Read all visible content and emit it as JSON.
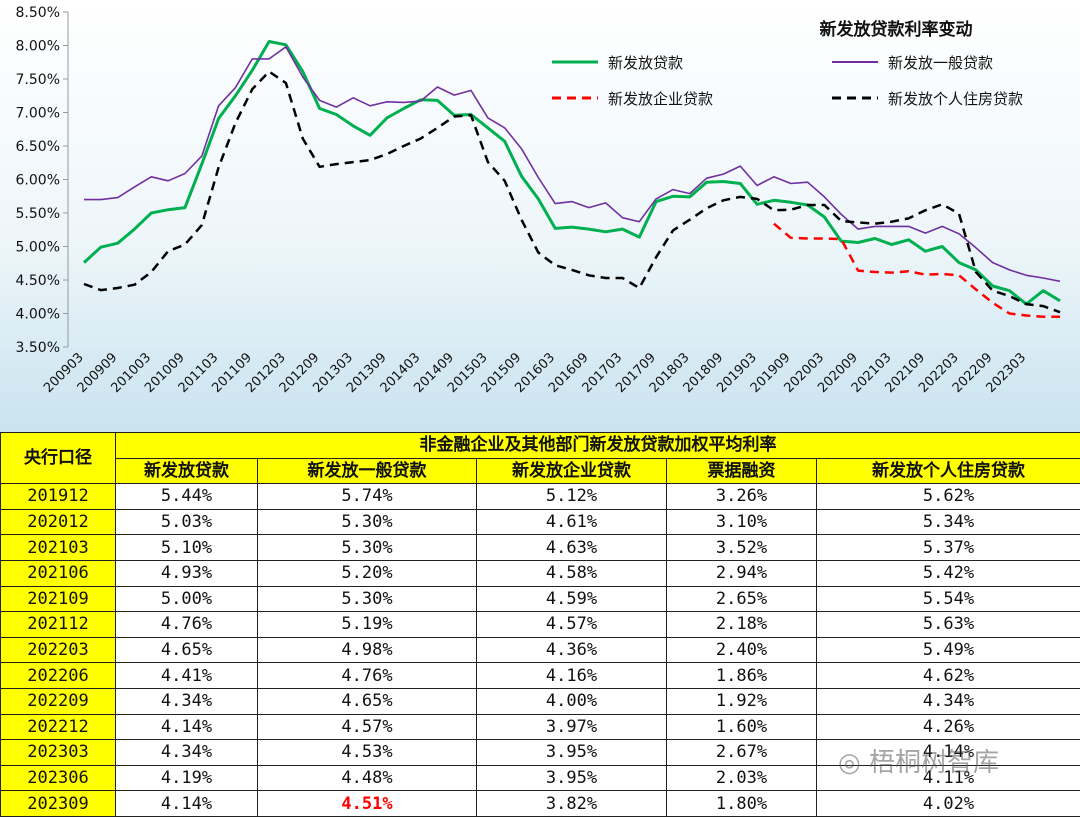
{
  "chart_data": {
    "type": "line",
    "title": "新发放贷款利率变动",
    "x_tick_labels": [
      "200903",
      "200909",
      "201003",
      "201009",
      "201103",
      "201109",
      "201203",
      "201209",
      "201303",
      "201309",
      "201403",
      "201409",
      "201503",
      "201509",
      "201603",
      "201609",
      "201703",
      "201709",
      "201803",
      "201809",
      "201903",
      "201909",
      "202003",
      "202009",
      "202103",
      "202109",
      "202203",
      "202209",
      "202303"
    ],
    "y_tick_labels": [
      "3.50%",
      "4.00%",
      "4.50%",
      "5.00%",
      "5.50%",
      "6.00%",
      "6.50%",
      "7.00%",
      "7.50%",
      "8.00%",
      "8.50%"
    ],
    "ylim": [
      3.5,
      8.5
    ],
    "legend_position": "top-right",
    "series": [
      {
        "name": "新发放贷款",
        "color": "#00b050",
        "style": "solid",
        "points": [
          [
            0,
            4.76
          ],
          [
            1,
            4.99
          ],
          [
            2,
            5.05
          ],
          [
            3,
            5.26
          ],
          [
            4,
            5.5
          ],
          [
            5,
            5.55
          ],
          [
            6,
            5.58
          ],
          [
            7,
            6.23
          ],
          [
            8,
            6.91
          ],
          [
            9,
            7.25
          ],
          [
            10,
            7.63
          ],
          [
            11,
            8.06
          ],
          [
            12,
            8.01
          ],
          [
            13,
            7.61
          ],
          [
            14,
            7.06
          ],
          [
            15,
            6.97
          ],
          [
            16,
            6.8
          ],
          [
            17,
            6.66
          ],
          [
            18,
            6.92
          ],
          [
            19,
            7.06
          ],
          [
            20,
            7.19
          ],
          [
            21,
            7.18
          ],
          [
            22,
            6.96
          ],
          [
            23,
            6.97
          ],
          [
            24,
            6.77
          ],
          [
            25,
            6.57
          ],
          [
            26,
            6.05
          ],
          [
            27,
            5.71
          ],
          [
            28,
            5.27
          ],
          [
            29,
            5.29
          ],
          [
            30,
            5.26
          ],
          [
            31,
            5.22
          ],
          [
            32,
            5.26
          ],
          [
            33,
            5.14
          ],
          [
            34,
            5.67
          ],
          [
            35,
            5.75
          ],
          [
            36,
            5.74
          ],
          [
            37,
            5.96
          ],
          [
            38,
            5.97
          ],
          [
            39,
            5.94
          ],
          [
            40,
            5.63
          ],
          [
            41,
            5.69
          ],
          [
            42,
            5.66
          ],
          [
            43,
            5.62
          ],
          [
            44,
            5.44
          ],
          [
            45,
            5.08
          ],
          [
            46,
            5.06
          ],
          [
            47,
            5.12
          ],
          [
            48,
            5.03
          ],
          [
            49,
            5.1
          ],
          [
            50,
            4.93
          ],
          [
            51,
            5.0
          ],
          [
            52,
            4.76
          ],
          [
            53,
            4.65
          ],
          [
            54,
            4.41
          ],
          [
            55,
            4.34
          ],
          [
            56,
            4.14
          ],
          [
            57,
            4.34
          ],
          [
            58,
            4.19
          ]
        ]
      },
      {
        "name": "新发放一般贷款",
        "color": "#7030a0",
        "style": "solid",
        "points": [
          [
            0,
            5.7
          ],
          [
            1,
            5.7
          ],
          [
            2,
            5.73
          ],
          [
            3,
            5.89
          ],
          [
            4,
            6.04
          ],
          [
            5,
            5.98
          ],
          [
            6,
            6.09
          ],
          [
            7,
            6.35
          ],
          [
            8,
            7.1
          ],
          [
            9,
            7.37
          ],
          [
            10,
            7.8
          ],
          [
            11,
            7.8
          ],
          [
            12,
            7.98
          ],
          [
            13,
            7.53
          ],
          [
            14,
            7.18
          ],
          [
            15,
            7.08
          ],
          [
            16,
            7.22
          ],
          [
            17,
            7.1
          ],
          [
            18,
            7.16
          ],
          [
            19,
            7.15
          ],
          [
            20,
            7.17
          ],
          [
            21,
            7.38
          ],
          [
            22,
            7.26
          ],
          [
            23,
            7.33
          ],
          [
            24,
            6.92
          ],
          [
            25,
            6.77
          ],
          [
            26,
            6.46
          ],
          [
            27,
            6.03
          ],
          [
            28,
            5.64
          ],
          [
            29,
            5.67
          ],
          [
            30,
            5.58
          ],
          [
            31,
            5.65
          ],
          [
            32,
            5.43
          ],
          [
            33,
            5.37
          ],
          [
            34,
            5.71
          ],
          [
            35,
            5.85
          ],
          [
            36,
            5.79
          ],
          [
            37,
            6.02
          ],
          [
            38,
            6.08
          ],
          [
            39,
            6.2
          ],
          [
            40,
            5.91
          ],
          [
            41,
            6.04
          ],
          [
            42,
            5.94
          ],
          [
            43,
            5.96
          ],
          [
            44,
            5.74
          ],
          [
            45,
            5.48
          ],
          [
            46,
            5.26
          ],
          [
            47,
            5.3
          ],
          [
            48,
            5.3
          ],
          [
            49,
            5.3
          ],
          [
            50,
            5.2
          ],
          [
            51,
            5.3
          ],
          [
            52,
            5.19
          ],
          [
            53,
            4.98
          ],
          [
            54,
            4.76
          ],
          [
            55,
            4.65
          ],
          [
            56,
            4.57
          ],
          [
            57,
            4.53
          ],
          [
            58,
            4.48
          ]
        ]
      },
      {
        "name": "新发放企业贷款",
        "color": "#ff0000",
        "style": "dashed",
        "points": [
          [
            41,
            5.34
          ],
          [
            42,
            5.13
          ],
          [
            43,
            5.12
          ],
          [
            44,
            5.12
          ],
          [
            45,
            5.11
          ],
          [
            46,
            4.64
          ],
          [
            47,
            4.62
          ],
          [
            48,
            4.61
          ],
          [
            49,
            4.63
          ],
          [
            50,
            4.58
          ],
          [
            51,
            4.59
          ],
          [
            52,
            4.57
          ],
          [
            53,
            4.36
          ],
          [
            54,
            4.16
          ],
          [
            55,
            4.0
          ],
          [
            56,
            3.97
          ],
          [
            57,
            3.95
          ],
          [
            58,
            3.95
          ]
        ]
      },
      {
        "name": "新发放个人住房贷款",
        "color": "#000000",
        "style": "dashed",
        "points": [
          [
            0,
            4.44
          ],
          [
            1,
            4.35
          ],
          [
            2,
            4.38
          ],
          [
            3,
            4.43
          ],
          [
            4,
            4.62
          ],
          [
            5,
            4.93
          ],
          [
            6,
            5.03
          ],
          [
            7,
            5.32
          ],
          [
            8,
            6.18
          ],
          [
            9,
            6.84
          ],
          [
            10,
            7.35
          ],
          [
            11,
            7.61
          ],
          [
            12,
            7.44
          ],
          [
            13,
            6.61
          ],
          [
            14,
            6.19
          ],
          [
            15,
            6.23
          ],
          [
            16,
            6.26
          ],
          [
            17,
            6.29
          ],
          [
            18,
            6.38
          ],
          [
            19,
            6.5
          ],
          [
            20,
            6.61
          ],
          [
            21,
            6.77
          ],
          [
            22,
            6.94
          ],
          [
            23,
            6.96
          ],
          [
            24,
            6.26
          ],
          [
            25,
            5.98
          ],
          [
            26,
            5.4
          ],
          [
            27,
            4.91
          ],
          [
            28,
            4.72
          ],
          [
            29,
            4.65
          ],
          [
            30,
            4.57
          ],
          [
            31,
            4.53
          ],
          [
            32,
            4.53
          ],
          [
            33,
            4.38
          ],
          [
            34,
            4.84
          ],
          [
            35,
            5.24
          ],
          [
            36,
            5.4
          ],
          [
            37,
            5.57
          ],
          [
            38,
            5.69
          ],
          [
            39,
            5.74
          ],
          [
            40,
            5.71
          ],
          [
            41,
            5.54
          ],
          [
            42,
            5.55
          ],
          [
            43,
            5.62
          ],
          [
            44,
            5.62
          ],
          [
            45,
            5.38
          ],
          [
            46,
            5.36
          ],
          [
            47,
            5.34
          ],
          [
            48,
            5.37
          ],
          [
            49,
            5.42
          ],
          [
            50,
            5.54
          ],
          [
            51,
            5.63
          ],
          [
            52,
            5.49
          ],
          [
            53,
            4.62
          ],
          [
            54,
            4.34
          ],
          [
            55,
            4.26
          ],
          [
            56,
            4.14
          ],
          [
            57,
            4.11
          ],
          [
            58,
            4.02
          ]
        ]
      }
    ]
  },
  "table": {
    "corner_label": "央行口径",
    "group_header": "非金融企业及其他部门新发放贷款加权平均利率",
    "columns": [
      "新发放贷款",
      "新发放一般贷款",
      "新发放企业贷款",
      "票据融资",
      "新发放个人住房贷款"
    ],
    "rows": [
      {
        "period": "201912",
        "values": [
          "5.44%",
          "5.74%",
          "5.12%",
          "3.26%",
          "5.62%"
        ]
      },
      {
        "period": "202012",
        "values": [
          "5.03%",
          "5.30%",
          "4.61%",
          "3.10%",
          "5.34%"
        ]
      },
      {
        "period": "202103",
        "values": [
          "5.10%",
          "5.30%",
          "4.63%",
          "3.52%",
          "5.37%"
        ]
      },
      {
        "period": "202106",
        "values": [
          "4.93%",
          "5.20%",
          "4.58%",
          "2.94%",
          "5.42%"
        ]
      },
      {
        "period": "202109",
        "values": [
          "5.00%",
          "5.30%",
          "4.59%",
          "2.65%",
          "5.54%"
        ]
      },
      {
        "period": "202112",
        "values": [
          "4.76%",
          "5.19%",
          "4.57%",
          "2.18%",
          "5.63%"
        ]
      },
      {
        "period": "202203",
        "values": [
          "4.65%",
          "4.98%",
          "4.36%",
          "2.40%",
          "5.49%"
        ]
      },
      {
        "period": "202206",
        "values": [
          "4.41%",
          "4.76%",
          "4.16%",
          "1.86%",
          "4.62%"
        ]
      },
      {
        "period": "202209",
        "values": [
          "4.34%",
          "4.65%",
          "4.00%",
          "1.92%",
          "4.34%"
        ]
      },
      {
        "period": "202212",
        "values": [
          "4.14%",
          "4.57%",
          "3.97%",
          "1.60%",
          "4.26%"
        ]
      },
      {
        "period": "202303",
        "values": [
          "4.34%",
          "4.53%",
          "3.95%",
          "2.67%",
          "4.14%"
        ]
      },
      {
        "period": "202306",
        "values": [
          "4.19%",
          "4.48%",
          "3.95%",
          "2.03%",
          "4.11%"
        ]
      },
      {
        "period": "202309",
        "values": [
          "4.14%",
          "4.51%",
          "3.82%",
          "1.80%",
          "4.02%"
        ]
      }
    ],
    "highlight_cell": {
      "row": 12,
      "col": 1,
      "color": "#ff0000"
    }
  },
  "watermark": {
    "text": "梧桐树智库",
    "icon": "wechat-icon"
  }
}
